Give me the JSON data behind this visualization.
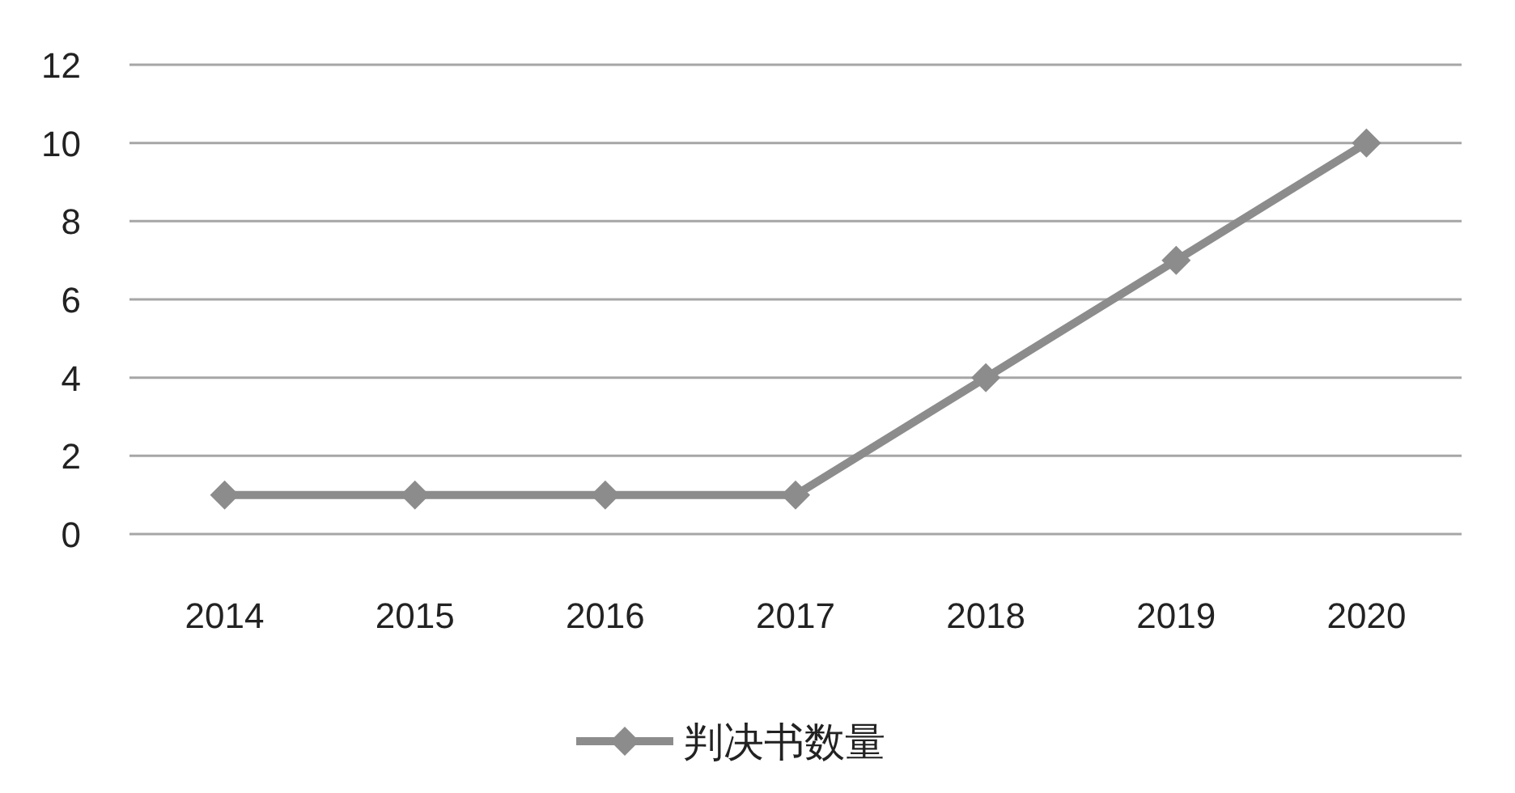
{
  "chart_data": {
    "type": "line",
    "categories": [
      "2014",
      "2015",
      "2016",
      "2017",
      "2018",
      "2019",
      "2020"
    ],
    "series": [
      {
        "name": "判决书数量",
        "color": "#8c8c8c",
        "values": [
          1,
          1,
          1,
          1,
          4,
          7,
          10
        ]
      }
    ],
    "ylim": [
      0,
      12
    ],
    "yticks": [
      0,
      2,
      4,
      6,
      8,
      10,
      12
    ],
    "grid": "y",
    "legend": "bottom",
    "marker": "diamond",
    "line_style": "solid"
  }
}
